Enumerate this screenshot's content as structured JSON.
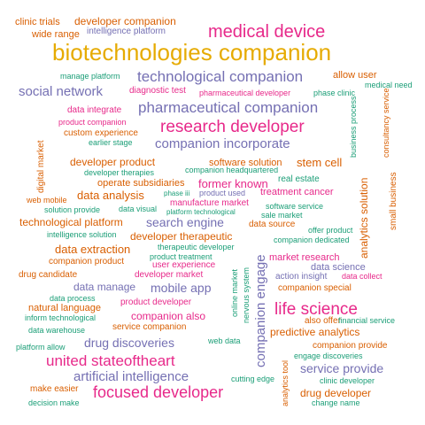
{
  "colors": {
    "orange": "#d95f02",
    "teal": "#1b9e77",
    "purple": "#7570b3",
    "pink": "#e7298a",
    "gold": "#e6ab02"
  },
  "words": [
    {
      "text": "clinic trials",
      "color": "orange"
    },
    {
      "text": "developer companion",
      "color": "orange"
    },
    {
      "text": "wide range",
      "color": "orange"
    },
    {
      "text": "intelligence platform",
      "color": "purple"
    },
    {
      "text": "medical device",
      "color": "pink"
    },
    {
      "text": "biotechnologies companion",
      "color": "gold"
    },
    {
      "text": "manage platform",
      "color": "teal"
    },
    {
      "text": "technological companion",
      "color": "purple"
    },
    {
      "text": "allow user",
      "color": "orange"
    },
    {
      "text": "medical need",
      "color": "teal"
    },
    {
      "text": "social network",
      "color": "purple"
    },
    {
      "text": "diagnostic test",
      "color": "pink"
    },
    {
      "text": "pharmaceutical developer",
      "color": "pink"
    },
    {
      "text": "phase clinic",
      "color": "teal"
    },
    {
      "text": "data integrate",
      "color": "pink"
    },
    {
      "text": "pharmaceutical companion",
      "color": "purple"
    },
    {
      "text": "product companion",
      "color": "pink"
    },
    {
      "text": "custom experience",
      "color": "orange"
    },
    {
      "text": "research developer",
      "color": "pink"
    },
    {
      "text": "earlier stage",
      "color": "teal"
    },
    {
      "text": "companion incorporate",
      "color": "purple"
    },
    {
      "text": "business process",
      "color": "teal"
    },
    {
      "text": "consultancy service",
      "color": "orange"
    },
    {
      "text": "digital market",
      "color": "orange"
    },
    {
      "text": "developer product",
      "color": "orange"
    },
    {
      "text": "software solution",
      "color": "orange"
    },
    {
      "text": "stem cell",
      "color": "orange"
    },
    {
      "text": "developer therapies",
      "color": "teal"
    },
    {
      "text": "companion headquartered",
      "color": "teal"
    },
    {
      "text": "operate subsidiaries",
      "color": "orange"
    },
    {
      "text": "former known",
      "color": "pink"
    },
    {
      "text": "real estate",
      "color": "teal"
    },
    {
      "text": "web mobile",
      "color": "orange"
    },
    {
      "text": "data analysis",
      "color": "orange"
    },
    {
      "text": "phase iii",
      "color": "teal"
    },
    {
      "text": "product used",
      "color": "purple"
    },
    {
      "text": "treatment cancer",
      "color": "pink"
    },
    {
      "text": "solution provide",
      "color": "teal"
    },
    {
      "text": "data visual",
      "color": "teal"
    },
    {
      "text": "manufacture market",
      "color": "pink"
    },
    {
      "text": "software service",
      "color": "teal"
    },
    {
      "text": "platform technological",
      "color": "teal"
    },
    {
      "text": "sale market",
      "color": "teal"
    },
    {
      "text": "analytics solution",
      "color": "orange"
    },
    {
      "text": "small business",
      "color": "orange"
    },
    {
      "text": "technological platform",
      "color": "orange"
    },
    {
      "text": "search engine",
      "color": "purple"
    },
    {
      "text": "data source",
      "color": "orange"
    },
    {
      "text": "offer product",
      "color": "teal"
    },
    {
      "text": "intelligence solution",
      "color": "teal"
    },
    {
      "text": "developer therapeutic",
      "color": "orange"
    },
    {
      "text": "companion dedicated",
      "color": "teal"
    },
    {
      "text": "therapeutic developer",
      "color": "teal"
    },
    {
      "text": "data extraction",
      "color": "orange"
    },
    {
      "text": "product treatment",
      "color": "teal"
    },
    {
      "text": "companion engage",
      "color": "purple"
    },
    {
      "text": "market research",
      "color": "pink"
    },
    {
      "text": "companion product",
      "color": "orange"
    },
    {
      "text": "user experience",
      "color": "pink"
    },
    {
      "text": "data science",
      "color": "purple"
    },
    {
      "text": "drug candidate",
      "color": "orange"
    },
    {
      "text": "developer market",
      "color": "pink"
    },
    {
      "text": "action insight",
      "color": "purple"
    },
    {
      "text": "data collect",
      "color": "pink"
    },
    {
      "text": "data manage",
      "color": "purple"
    },
    {
      "text": "mobile app",
      "color": "purple"
    },
    {
      "text": "companion special",
      "color": "orange"
    },
    {
      "text": "nervous system",
      "color": "teal"
    },
    {
      "text": "online market",
      "color": "teal"
    },
    {
      "text": "data process",
      "color": "teal"
    },
    {
      "text": "product developer",
      "color": "pink"
    },
    {
      "text": "natural language",
      "color": "orange"
    },
    {
      "text": "life science",
      "color": "pink"
    },
    {
      "text": "inform technological",
      "color": "teal"
    },
    {
      "text": "companion also",
      "color": "pink"
    },
    {
      "text": "also offer",
      "color": "orange"
    },
    {
      "text": "financial service",
      "color": "teal"
    },
    {
      "text": "data warehouse",
      "color": "teal"
    },
    {
      "text": "service companion",
      "color": "orange"
    },
    {
      "text": "predictive analytics",
      "color": "orange"
    },
    {
      "text": "drug discoveries",
      "color": "purple"
    },
    {
      "text": "web data",
      "color": "teal"
    },
    {
      "text": "platform allow",
      "color": "teal"
    },
    {
      "text": "companion provide",
      "color": "orange"
    },
    {
      "text": "engage discoveries",
      "color": "teal"
    },
    {
      "text": "united stateoftheart",
      "color": "pink"
    },
    {
      "text": "service provide",
      "color": "purple"
    },
    {
      "text": "analytics tool",
      "color": "orange"
    },
    {
      "text": "artificial intelligence",
      "color": "purple"
    },
    {
      "text": "cutting edge",
      "color": "teal"
    },
    {
      "text": "clinic developer",
      "color": "teal"
    },
    {
      "text": "make easier",
      "color": "orange"
    },
    {
      "text": "focused developer",
      "color": "pink"
    },
    {
      "text": "drug developer",
      "color": "orange"
    },
    {
      "text": "decision make",
      "color": "teal"
    },
    {
      "text": "change name",
      "color": "teal"
    }
  ]
}
